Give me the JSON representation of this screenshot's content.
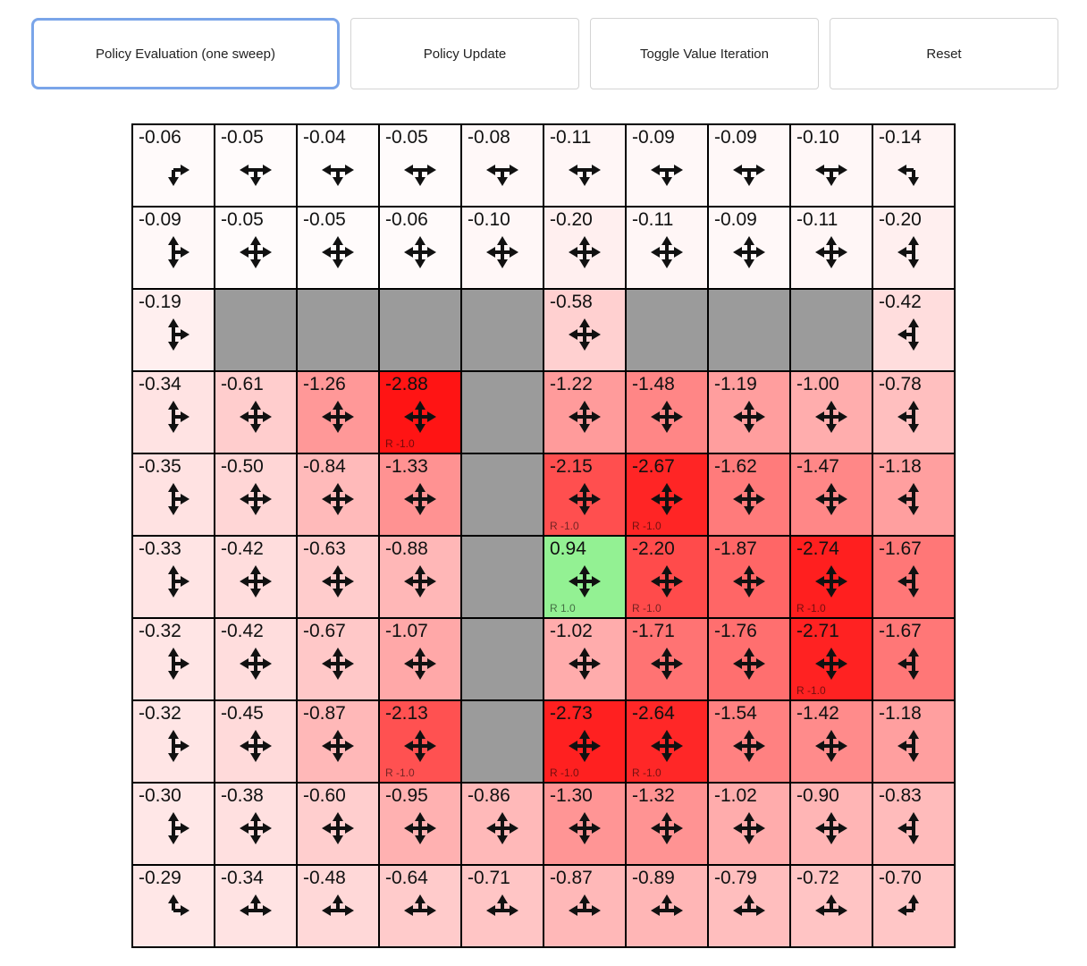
{
  "toolbar": {
    "buttons": [
      {
        "label": "Policy Evaluation (one sweep)",
        "active": true
      },
      {
        "label": "Policy Update",
        "active": false
      },
      {
        "label": "Toggle Value Iteration",
        "active": false
      },
      {
        "label": "Reset",
        "active": false
      }
    ]
  },
  "colors": {
    "active_button_border": "#7aa5e9",
    "button_border": "#d4d4d4",
    "wall": "#9b9b9b",
    "grid_line": "#000000"
  },
  "grid": {
    "rows": 10,
    "cols": 10,
    "cells": [
      [
        {
          "value": "-0.06",
          "arrows": "RD"
        },
        {
          "value": "-0.05",
          "arrows": "LDR"
        },
        {
          "value": "-0.04",
          "arrows": "LDR"
        },
        {
          "value": "-0.05",
          "arrows": "LDR"
        },
        {
          "value": "-0.08",
          "arrows": "LDR"
        },
        {
          "value": "-0.11",
          "arrows": "LDR"
        },
        {
          "value": "-0.09",
          "arrows": "LDR"
        },
        {
          "value": "-0.09",
          "arrows": "LDR"
        },
        {
          "value": "-0.10",
          "arrows": "LDR"
        },
        {
          "value": "-0.14",
          "arrows": "LD"
        }
      ],
      [
        {
          "value": "-0.09",
          "arrows": "URD"
        },
        {
          "value": "-0.05",
          "arrows": "ULDR"
        },
        {
          "value": "-0.05",
          "arrows": "ULDR"
        },
        {
          "value": "-0.06",
          "arrows": "ULDR"
        },
        {
          "value": "-0.10",
          "arrows": "ULDR"
        },
        {
          "value": "-0.20",
          "arrows": "ULDR"
        },
        {
          "value": "-0.11",
          "arrows": "ULDR"
        },
        {
          "value": "-0.09",
          "arrows": "ULDR"
        },
        {
          "value": "-0.11",
          "arrows": "ULDR"
        },
        {
          "value": "-0.20",
          "arrows": "ULD"
        }
      ],
      [
        {
          "value": "-0.19",
          "arrows": "URD"
        },
        {
          "wall": true
        },
        {
          "wall": true
        },
        {
          "wall": true
        },
        {
          "wall": true
        },
        {
          "value": "-0.58",
          "arrows": "ULDR"
        },
        {
          "wall": true
        },
        {
          "wall": true
        },
        {
          "wall": true
        },
        {
          "value": "-0.42",
          "arrows": "ULD"
        }
      ],
      [
        {
          "value": "-0.34",
          "arrows": "URD"
        },
        {
          "value": "-0.61",
          "arrows": "ULDR"
        },
        {
          "value": "-1.26",
          "arrows": "ULDR"
        },
        {
          "value": "-2.88",
          "arrows": "ULDR",
          "reward": "R -1.0"
        },
        {
          "wall": true
        },
        {
          "value": "-1.22",
          "arrows": "ULDR"
        },
        {
          "value": "-1.48",
          "arrows": "ULDR"
        },
        {
          "value": "-1.19",
          "arrows": "ULDR"
        },
        {
          "value": "-1.00",
          "arrows": "ULDR"
        },
        {
          "value": "-0.78",
          "arrows": "ULD"
        }
      ],
      [
        {
          "value": "-0.35",
          "arrows": "URD"
        },
        {
          "value": "-0.50",
          "arrows": "ULDR"
        },
        {
          "value": "-0.84",
          "arrows": "ULDR"
        },
        {
          "value": "-1.33",
          "arrows": "ULDR"
        },
        {
          "wall": true
        },
        {
          "value": "-2.15",
          "arrows": "ULDR",
          "reward": "R -1.0"
        },
        {
          "value": "-2.67",
          "arrows": "ULDR",
          "reward": "R -1.0"
        },
        {
          "value": "-1.62",
          "arrows": "ULDR"
        },
        {
          "value": "-1.47",
          "arrows": "ULDR"
        },
        {
          "value": "-1.18",
          "arrows": "ULD"
        }
      ],
      [
        {
          "value": "-0.33",
          "arrows": "URD"
        },
        {
          "value": "-0.42",
          "arrows": "ULDR"
        },
        {
          "value": "-0.63",
          "arrows": "ULDR"
        },
        {
          "value": "-0.88",
          "arrows": "ULDR"
        },
        {
          "wall": true
        },
        {
          "value": "0.94",
          "arrows": "ULDR",
          "reward": "R 1.0"
        },
        {
          "value": "-2.20",
          "arrows": "ULDR",
          "reward": "R -1.0"
        },
        {
          "value": "-1.87",
          "arrows": "ULDR"
        },
        {
          "value": "-2.74",
          "arrows": "ULDR",
          "reward": "R -1.0"
        },
        {
          "value": "-1.67",
          "arrows": "ULD"
        }
      ],
      [
        {
          "value": "-0.32",
          "arrows": "URD"
        },
        {
          "value": "-0.42",
          "arrows": "ULDR"
        },
        {
          "value": "-0.67",
          "arrows": "ULDR"
        },
        {
          "value": "-1.07",
          "arrows": "ULDR"
        },
        {
          "wall": true
        },
        {
          "value": "-1.02",
          "arrows": "ULDR"
        },
        {
          "value": "-1.71",
          "arrows": "ULDR"
        },
        {
          "value": "-1.76",
          "arrows": "ULDR"
        },
        {
          "value": "-2.71",
          "arrows": "ULDR",
          "reward": "R -1.0"
        },
        {
          "value": "-1.67",
          "arrows": "ULD"
        }
      ],
      [
        {
          "value": "-0.32",
          "arrows": "URD"
        },
        {
          "value": "-0.45",
          "arrows": "ULDR"
        },
        {
          "value": "-0.87",
          "arrows": "ULDR"
        },
        {
          "value": "-2.13",
          "arrows": "ULDR",
          "reward": "R -1.0"
        },
        {
          "wall": true
        },
        {
          "value": "-2.73",
          "arrows": "ULDR",
          "reward": "R -1.0"
        },
        {
          "value": "-2.64",
          "arrows": "ULDR",
          "reward": "R -1.0"
        },
        {
          "value": "-1.54",
          "arrows": "ULDR"
        },
        {
          "value": "-1.42",
          "arrows": "ULDR"
        },
        {
          "value": "-1.18",
          "arrows": "ULD"
        }
      ],
      [
        {
          "value": "-0.30",
          "arrows": "URD"
        },
        {
          "value": "-0.38",
          "arrows": "ULDR"
        },
        {
          "value": "-0.60",
          "arrows": "ULDR"
        },
        {
          "value": "-0.95",
          "arrows": "ULDR"
        },
        {
          "value": "-0.86",
          "arrows": "ULDR"
        },
        {
          "value": "-1.30",
          "arrows": "ULDR"
        },
        {
          "value": "-1.32",
          "arrows": "ULDR"
        },
        {
          "value": "-1.02",
          "arrows": "ULDR"
        },
        {
          "value": "-0.90",
          "arrows": "ULDR"
        },
        {
          "value": "-0.83",
          "arrows": "ULD"
        }
      ],
      [
        {
          "value": "-0.29",
          "arrows": "UR"
        },
        {
          "value": "-0.34",
          "arrows": "LUR"
        },
        {
          "value": "-0.48",
          "arrows": "LUR"
        },
        {
          "value": "-0.64",
          "arrows": "LUR"
        },
        {
          "value": "-0.71",
          "arrows": "LUR"
        },
        {
          "value": "-0.87",
          "arrows": "LUR"
        },
        {
          "value": "-0.89",
          "arrows": "LUR"
        },
        {
          "value": "-0.79",
          "arrows": "LUR"
        },
        {
          "value": "-0.72",
          "arrows": "LUR"
        },
        {
          "value": "-0.70",
          "arrows": "UL"
        }
      ]
    ]
  }
}
